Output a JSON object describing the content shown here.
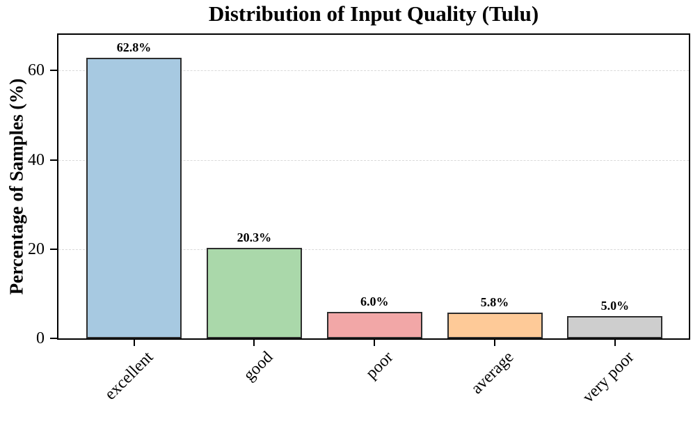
{
  "chart_data": {
    "type": "bar",
    "title": "Distribution of Input Quality (Tulu)",
    "xlabel": "",
    "ylabel": "Percentage of Samples (%)",
    "categories": [
      "excellent",
      "good",
      "poor",
      "average",
      "very poor"
    ],
    "values": [
      62.8,
      20.3,
      6.0,
      5.8,
      5.0
    ],
    "value_labels": [
      "62.8%",
      "20.3%",
      "6.0%",
      "5.8%",
      "5.0%"
    ],
    "yticks": [
      0,
      20,
      40,
      60
    ],
    "ytick_labels": [
      "0",
      "20",
      "40",
      "60"
    ],
    "ylim": [
      0,
      68
    ],
    "grid": "horizontal dashed at yticks",
    "legend_position": "none",
    "colors": {
      "bars": [
        "#a7c9e1",
        "#aad8aa",
        "#f2a7a7",
        "#feca98",
        "#cecece"
      ],
      "bar_edge": "#2d2d2d",
      "spine": "#000000",
      "gridline": "#d9d9d9",
      "text": "#000000",
      "background": "#ffffff"
    }
  }
}
